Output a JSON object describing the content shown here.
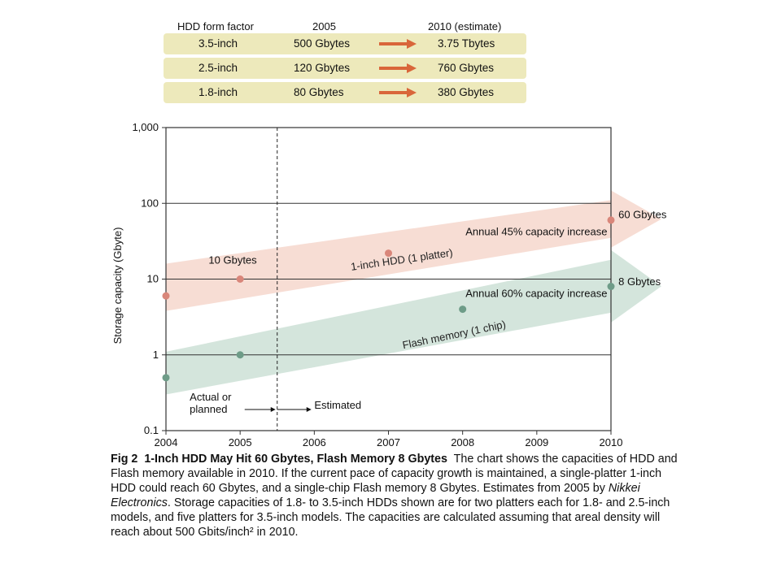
{
  "table": {
    "headers": [
      "HDD form factor",
      "2005",
      "2010 (estimate)"
    ],
    "rows": [
      {
        "form_factor": "3.5-inch",
        "y2005": "500 Gbytes",
        "y2010": "3.75 Tbytes"
      },
      {
        "form_factor": "2.5-inch",
        "y2005": "120 Gbytes",
        "y2010": "760 Gbytes"
      },
      {
        "form_factor": "1.8-inch",
        "y2005": "80 Gbytes",
        "y2010": "380 Gbytes"
      }
    ],
    "row_color": "#ede9bb",
    "arrow_color": "#d9663a"
  },
  "chart_data": {
    "type": "line",
    "ylabel": "Storage capacity (Gbyte)",
    "yscale": "log",
    "ylim": [
      0.1,
      1000
    ],
    "xlim": [
      2004,
      2010
    ],
    "x_ticks": [
      2004,
      2005,
      2006,
      2007,
      2008,
      2009,
      2010
    ],
    "x_tick_labels": [
      "2004",
      "2005",
      "2006",
      "2007",
      "2008",
      "2009",
      "2010"
    ],
    "y_ticks": [
      0.1,
      1,
      10,
      100,
      1000
    ],
    "y_tick_labels": [
      "0.1",
      "1",
      "10",
      "100",
      "1,000"
    ],
    "gridlines_y": [
      1,
      10,
      100
    ],
    "divider_x": 2005.5,
    "series": [
      {
        "name": "1-inch HDD (1 platter)",
        "color": "#d9867a",
        "band_color": "#f6d9cf",
        "x": [
          2004,
          2005,
          2007,
          2010
        ],
        "values": [
          6,
          10,
          22,
          60
        ],
        "band_start": [
          3.8,
          16
        ],
        "band_end": [
          35,
          110
        ],
        "label_x": 2006.5,
        "label_y": 13
      },
      {
        "name": "Flash memory (1 chip)",
        "color": "#6e9c88",
        "band_color": "#cfe2d8",
        "x": [
          2004,
          2005,
          2008,
          2010
        ],
        "values": [
          0.5,
          1,
          4,
          8
        ],
        "band_start": [
          0.3,
          1.1
        ],
        "band_end": [
          3.6,
          18
        ],
        "label_x": 2007.2,
        "label_y": 1.2
      }
    ],
    "annotations": [
      {
        "text": "10 Gbytes",
        "x": 2004.9,
        "y": 16,
        "anchor": "middle"
      },
      {
        "text": "Annual 45% capacity increase",
        "x": 2009.95,
        "y": 38,
        "anchor": "end"
      },
      {
        "text": "60 Gbytes",
        "x": 2010.1,
        "y": 64,
        "anchor": "start"
      },
      {
        "text": "Annual 60% capacity increase",
        "x": 2009.95,
        "y": 5.8,
        "anchor": "end"
      },
      {
        "text": "8 Gbytes",
        "x": 2010.1,
        "y": 8.3,
        "anchor": "start"
      },
      {
        "text": "Estimated",
        "x": 2006.0,
        "y": 0.195,
        "anchor": "start"
      }
    ],
    "actual_label_lines": [
      "Actual or",
      "planned"
    ]
  },
  "caption": {
    "figure_label": "Fig 2",
    "title": "1-Inch HDD May Hit 60 Gbytes, Flash Memory 8 Gbytes",
    "text_part1": "The chart shows the capacities of HDD and Flash memory available in 2010. If the current pace of capacity growth is maintained, a single-platter 1-inch HDD could reach 60 Gbytes, and a single-chip Flash memory 8 Gbytes. Estimates from 2005 by ",
    "source": "Nikkei Electronics",
    "text_part2": ". Storage capacities of 1.8- to 3.5-inch HDDs shown are for two platters each for 1.8- and 2.5-inch models, and five platters for 3.5-inch models. The capacities are calculated assuming that areal density will reach about 500 Gbits/inch² in 2010."
  }
}
